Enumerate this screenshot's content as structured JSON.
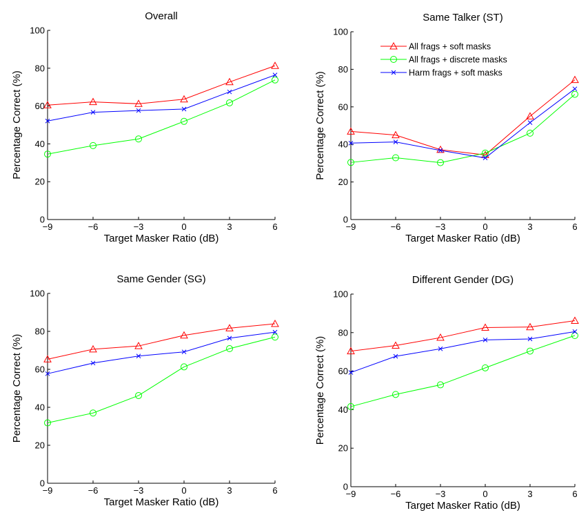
{
  "chart_data": [
    {
      "type": "line",
      "title": "Overall",
      "xlabel": "Target Masker Ratio (dB)",
      "ylabel": "Percentage Correct (%)",
      "x": [
        -9,
        -6,
        -3,
        0,
        3,
        6
      ],
      "xlim": [
        -9,
        6
      ],
      "ylim": [
        0,
        100
      ],
      "xticks": [
        "−9",
        "−6",
        "−3",
        "0",
        "3",
        "6"
      ],
      "yticks": [
        "0",
        "20",
        "40",
        "60",
        "80",
        "100"
      ],
      "grid": false,
      "series": [
        {
          "values": [
            60.5,
            62.2,
            61.2,
            63.6,
            72.7,
            81.3
          ]
        },
        {
          "values": [
            34.6,
            39.1,
            42.6,
            51.9,
            61.7,
            73.8
          ]
        },
        {
          "values": [
            52.1,
            56.7,
            57.6,
            58.4,
            67.5,
            76.4
          ]
        }
      ]
    },
    {
      "type": "line",
      "title": "Same Talker (ST)",
      "xlabel": "Target Masker Ratio (dB)",
      "ylabel": "Percentage Correct (%)",
      "x": [
        -9,
        -6,
        -3,
        0,
        3,
        6
      ],
      "xlim": [
        -9,
        6
      ],
      "ylim": [
        0,
        100
      ],
      "xticks": [
        "−9",
        "−6",
        "−3",
        "0",
        "3",
        "6"
      ],
      "yticks": [
        "0",
        "20",
        "40",
        "60",
        "80",
        "100"
      ],
      "grid": false,
      "legend_position": "top-right",
      "series": [
        {
          "name": "All frags + soft masks",
          "values": [
            46.9,
            45.0,
            37.2,
            34.4,
            55.0,
            74.4
          ]
        },
        {
          "name": "All frags + discrete masks",
          "values": [
            30.4,
            32.9,
            30.3,
            35.4,
            46.0,
            66.7
          ]
        },
        {
          "name": "Harm frags + soft masks",
          "values": [
            40.7,
            41.3,
            36.8,
            32.8,
            51.6,
            69.6
          ]
        }
      ]
    },
    {
      "type": "line",
      "title": "Same Gender (SG)",
      "xlabel": "Target Masker Ratio (dB)",
      "ylabel": "Percentage Correct (%)",
      "x": [
        -9,
        -6,
        -3,
        0,
        3,
        6
      ],
      "xlim": [
        -9,
        6
      ],
      "ylim": [
        0,
        100
      ],
      "xticks": [
        "−9",
        "−6",
        "−3",
        "0",
        "3",
        "6"
      ],
      "yticks": [
        "0",
        "20",
        "40",
        "60",
        "80",
        "100"
      ],
      "grid": false,
      "series": [
        {
          "values": [
            65.3,
            70.6,
            72.3,
            77.9,
            81.7,
            84.0
          ]
        },
        {
          "values": [
            31.8,
            37.0,
            46.2,
            61.3,
            70.9,
            77.0
          ]
        },
        {
          "values": [
            57.7,
            63.3,
            67.0,
            69.2,
            76.4,
            79.6
          ]
        }
      ]
    },
    {
      "type": "line",
      "title": "Different Gender (DG)",
      "xlabel": "Target Masker Ratio (dB)",
      "ylabel": "Percentage Correct (%)",
      "x": [
        -9,
        -6,
        -3,
        0,
        3,
        6
      ],
      "xlim": [
        -9,
        6
      ],
      "ylim": [
        0,
        100
      ],
      "xticks": [
        "−9",
        "−6",
        "−3",
        "0",
        "3",
        "6"
      ],
      "yticks": [
        "0",
        "20",
        "40",
        "60",
        "80",
        "100"
      ],
      "grid": false,
      "series": [
        {
          "values": [
            70.4,
            73.3,
            77.4,
            82.6,
            82.9,
            86.2
          ]
        },
        {
          "values": [
            41.6,
            47.9,
            52.9,
            61.7,
            70.4,
            78.5
          ]
        },
        {
          "values": [
            59.3,
            67.7,
            71.6,
            76.2,
            76.7,
            80.5
          ]
        }
      ]
    }
  ],
  "style": {
    "series_colors": [
      "#ff0000",
      "#00ff00",
      "#0000ff"
    ],
    "series_markers": [
      "triangle",
      "circle",
      "x-mark"
    ],
    "axis_color": "#000000"
  }
}
